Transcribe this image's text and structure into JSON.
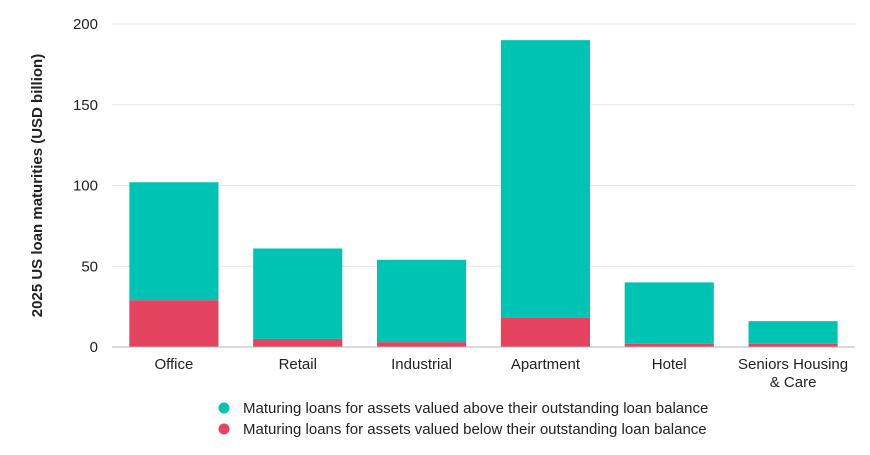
{
  "chart_data": {
    "type": "bar",
    "stacked": true,
    "categories": [
      "Office",
      "Retail",
      "Industrial",
      "Apartment",
      "Hotel",
      "Seniors Housing & Care"
    ],
    "category_lines": [
      [
        "Office"
      ],
      [
        "Retail"
      ],
      [
        "Industrial"
      ],
      [
        "Apartment"
      ],
      [
        "Hotel"
      ],
      [
        "Seniors Housing",
        "& Care"
      ]
    ],
    "series": [
      {
        "name": "Maturing loans for assets valued below their outstanding loan balance",
        "color": "#e5435f",
        "values": [
          29,
          5,
          3,
          18,
          2,
          2
        ]
      },
      {
        "name": "Maturing loans for assets valued above their outstanding loan balance",
        "color": "#00c4b3",
        "values": [
          73,
          56,
          51,
          172,
          38,
          14
        ]
      }
    ],
    "legend_order": [
      1,
      0
    ],
    "legend_position": "bottom",
    "ylabel": "2025 US loan maturities (USD billion)",
    "xlabel": "",
    "ylim": [
      0,
      200
    ],
    "yticks": [
      0,
      50,
      100,
      150,
      200
    ],
    "grid": true
  }
}
